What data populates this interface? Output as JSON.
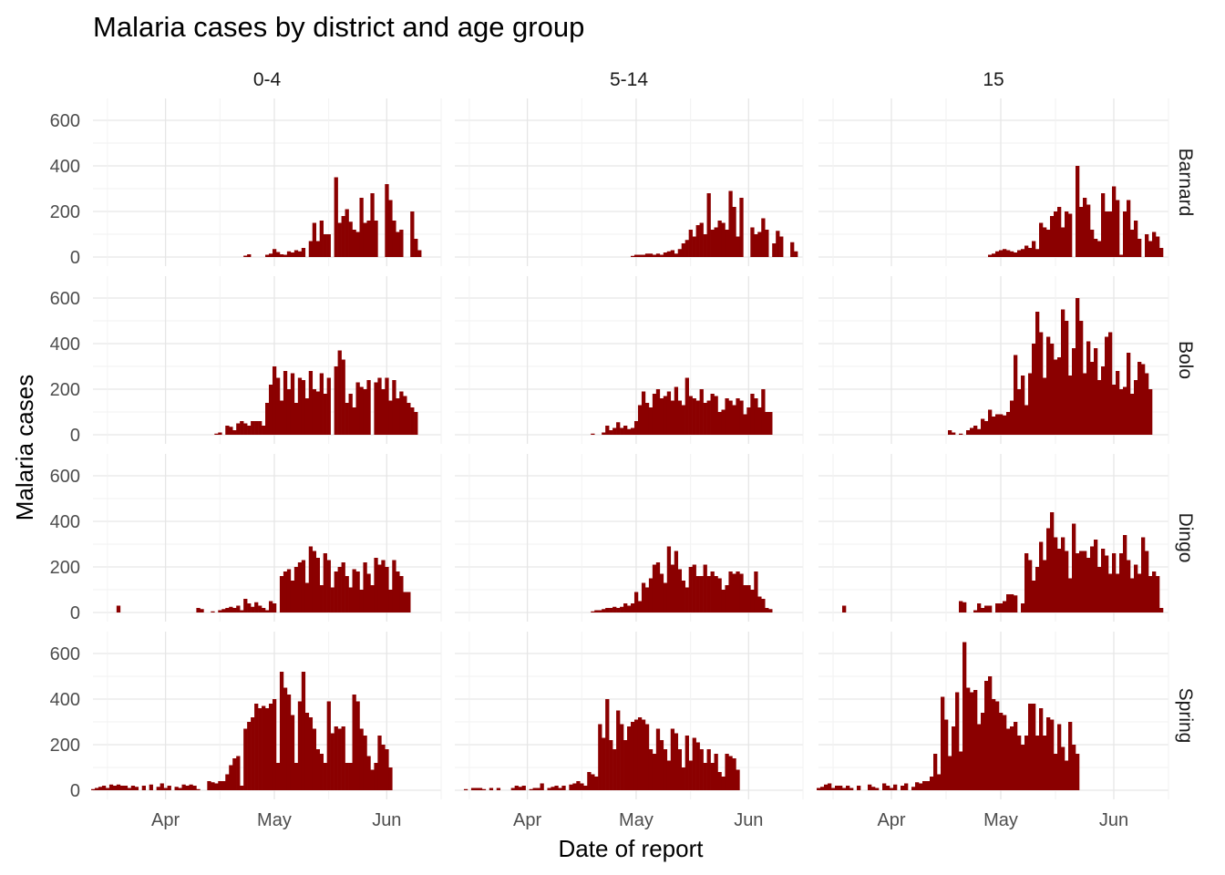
{
  "chart_data": {
    "type": "bar",
    "title": "Malaria cases by district and age group",
    "xlabel": "Date of report",
    "ylabel": "Malaria cases",
    "ylim": [
      0,
      660
    ],
    "y_ticks": [
      0,
      200,
      400,
      600
    ],
    "x_ticks": [
      {
        "date": "2020-04-01",
        "label": "Apr"
      },
      {
        "date": "2020-05-01",
        "label": "May"
      },
      {
        "date": "2020-06-01",
        "label": "Jun"
      }
    ],
    "x_range": [
      "2020-03-12",
      "2020-06-16"
    ],
    "columns": [
      "0-4",
      "5-14",
      "15"
    ],
    "rows": [
      "Barnard",
      "Bolo",
      "Dingo",
      "Spring"
    ],
    "bar_color": "#8B0000",
    "grid": true,
    "note": "Daily bars; values are approximate readings from the chart.",
    "panels": [
      {
        "row": "Barnard",
        "col": "0-4",
        "start": "2020-04-22",
        "values": [
          0,
          6,
          12,
          0,
          0,
          0,
          0,
          10,
          15,
          35,
          22,
          12,
          10,
          25,
          20,
          30,
          25,
          40,
          0,
          70,
          150,
          70,
          160,
          100,
          100,
          0,
          350,
          150,
          180,
          210,
          155,
          120,
          110,
          260,
          150,
          160,
          280,
          160,
          0,
          0,
          320,
          250,
          160,
          110,
          120,
          0,
          0,
          200,
          80,
          30
        ]
      },
      {
        "row": "Barnard",
        "col": "5-14",
        "start": "2020-04-26",
        "values": [
          0,
          0,
          0,
          0,
          5,
          10,
          10,
          10,
          15,
          15,
          10,
          15,
          10,
          20,
          25,
          30,
          15,
          35,
          60,
          75,
          120,
          90,
          140,
          150,
          100,
          280,
          120,
          130,
          160,
          150,
          120,
          290,
          220,
          90,
          260,
          0,
          0,
          130,
          100,
          110,
          170,
          120,
          0,
          60,
          115,
          90,
          0,
          0,
          65,
          25
        ]
      },
      {
        "row": "Barnard",
        "col": "15",
        "start": "2020-04-26",
        "values": [
          0,
          0,
          10,
          15,
          25,
          30,
          35,
          30,
          25,
          20,
          30,
          35,
          50,
          40,
          70,
          35,
          150,
          130,
          120,
          180,
          200,
          220,
          130,
          200,
          190,
          0,
          400,
          220,
          260,
          230,
          120,
          80,
          70,
          280,
          200,
          200,
          310,
          250,
          10,
          200,
          250,
          120,
          160,
          80,
          0,
          100,
          70,
          110,
          90,
          40
        ]
      },
      {
        "row": "Bolo",
        "col": "0-4",
        "start": "2020-04-15",
        "values": [
          5,
          10,
          0,
          40,
          35,
          20,
          50,
          60,
          50,
          40,
          60,
          60,
          60,
          40,
          140,
          220,
          300,
          250,
          150,
          280,
          200,
          270,
          140,
          250,
          240,
          160,
          280,
          200,
          190,
          270,
          180,
          250,
          0,
          300,
          370,
          330,
          140,
          180,
          120,
          230,
          210,
          200,
          240,
          0,
          230,
          250,
          200,
          250,
          150,
          240,
          160,
          190,
          170,
          140,
          120,
          100
        ]
      },
      {
        "row": "Bolo",
        "col": "5-14",
        "start": "2020-04-19",
        "values": [
          5,
          0,
          0,
          10,
          40,
          20,
          30,
          55,
          30,
          40,
          25,
          30,
          60,
          130,
          190,
          140,
          120,
          180,
          200,
          160,
          170,
          190,
          150,
          210,
          150,
          130,
          250,
          170,
          160,
          150,
          200,
          140,
          150,
          180,
          170,
          100,
          110,
          160,
          150,
          130,
          160,
          150,
          90,
          120,
          180,
          160,
          120,
          200,
          100,
          100
        ]
      },
      {
        "row": "Bolo",
        "col": "15",
        "start": "2020-04-17",
        "values": [
          20,
          10,
          0,
          5,
          0,
          20,
          30,
          40,
          25,
          70,
          60,
          110,
          80,
          90,
          90,
          85,
          100,
          150,
          350,
          200,
          260,
          130,
          270,
          400,
          540,
          450,
          250,
          430,
          400,
          330,
          340,
          550,
          500,
          260,
          380,
          600,
          500,
          270,
          410,
          320,
          380,
          240,
          300,
          430,
          450,
          220,
          280,
          200,
          210,
          360,
          180,
          240,
          320,
          310,
          270,
          200
        ]
      },
      {
        "row": "Dingo",
        "col": "0-4",
        "start": "2020-03-11",
        "values": [
          0,
          0,
          0,
          0,
          0,
          0,
          0,
          0,
          30,
          0,
          0,
          0,
          0,
          0,
          0,
          0,
          0,
          0,
          0,
          0,
          0,
          0,
          0,
          0,
          0,
          0,
          0,
          0,
          0,
          0,
          20,
          15,
          0,
          0,
          5,
          0,
          10,
          15,
          20,
          25,
          20,
          30,
          10,
          60,
          40,
          25,
          45,
          30,
          20,
          10,
          50,
          40,
          0,
          160,
          180,
          190,
          140,
          200,
          220,
          230,
          130,
          290,
          270,
          240,
          120,
          260,
          230,
          110,
          180,
          200,
          220,
          160,
          110,
          190,
          180,
          100,
          220,
          170,
          120,
          240,
          210,
          230,
          200,
          100,
          230,
          180,
          160,
          90,
          90,
          0
        ]
      },
      {
        "row": "Dingo",
        "col": "5-14",
        "start": "2020-04-19",
        "values": [
          5,
          10,
          10,
          15,
          20,
          20,
          25,
          20,
          25,
          40,
          30,
          40,
          90,
          50,
          130,
          110,
          150,
          210,
          220,
          170,
          130,
          290,
          210,
          270,
          190,
          140,
          110,
          200,
          210,
          160,
          160,
          210,
          160,
          180,
          160,
          150,
          100,
          120,
          180,
          170,
          180,
          170,
          120,
          120,
          100,
          180,
          70,
          60,
          20,
          15
        ]
      },
      {
        "row": "Dingo",
        "col": "15",
        "start": "2020-03-11",
        "values": [
          0,
          0,
          0,
          0,
          0,
          0,
          0,
          0,
          30,
          0,
          0,
          0,
          0,
          0,
          0,
          0,
          0,
          0,
          0,
          0,
          0,
          0,
          0,
          0,
          0,
          0,
          0,
          0,
          0,
          0,
          0,
          0,
          0,
          0,
          0,
          0,
          0,
          0,
          0,
          0,
          50,
          45,
          0,
          0,
          10,
          40,
          20,
          30,
          30,
          0,
          40,
          40,
          50,
          80,
          80,
          75,
          0,
          40,
          260,
          230,
          140,
          200,
          310,
          230,
          370,
          440,
          330,
          280,
          330,
          270,
          150,
          390,
          260,
          270,
          270,
          240,
          290,
          320,
          200,
          280,
          250,
          170,
          260,
          170,
          260,
          340,
          230,
          150,
          210,
          170,
          330,
          270,
          160,
          180,
          160,
          20
        ]
      },
      {
        "row": "Spring",
        "col": "0-4",
        "start": "2020-03-12",
        "values": [
          5,
          10,
          15,
          20,
          10,
          25,
          20,
          25,
          20,
          20,
          10,
          20,
          15,
          0,
          20,
          0,
          25,
          0,
          15,
          30,
          10,
          20,
          0,
          15,
          10,
          25,
          20,
          25,
          20,
          5,
          0,
          0,
          40,
          35,
          30,
          40,
          40,
          70,
          110,
          140,
          150,
          20,
          270,
          300,
          320,
          380,
          360,
          370,
          360,
          380,
          400,
          120,
          520,
          450,
          420,
          330,
          120,
          390,
          520,
          340,
          320,
          270,
          180,
          160,
          120,
          390,
          250,
          280,
          270,
          280,
          120,
          120,
          420,
          390,
          270,
          240,
          150,
          90,
          120,
          240,
          200,
          180,
          100
        ]
      },
      {
        "row": "Spring",
        "col": "5-14",
        "start": "2020-03-12",
        "values": [
          0,
          0,
          0,
          5,
          0,
          10,
          10,
          10,
          5,
          0,
          10,
          0,
          10,
          0,
          0,
          0,
          10,
          20,
          15,
          20,
          0,
          5,
          10,
          10,
          30,
          0,
          10,
          15,
          20,
          10,
          20,
          0,
          25,
          30,
          40,
          30,
          20,
          80,
          70,
          60,
          290,
          230,
          400,
          220,
          180,
          350,
          290,
          220,
          280,
          300,
          310,
          320,
          310,
          290,
          180,
          160,
          270,
          220,
          180,
          130,
          270,
          250,
          180,
          100,
          240,
          130,
          230,
          210,
          180,
          120,
          180,
          120,
          160,
          80,
          60,
          160,
          150,
          140,
          90
        ]
      },
      {
        "row": "Spring",
        "col": "15",
        "start": "2020-03-12",
        "values": [
          10,
          15,
          25,
          30,
          10,
          20,
          20,
          10,
          20,
          10,
          0,
          20,
          0,
          0,
          25,
          15,
          10,
          0,
          30,
          20,
          10,
          25,
          0,
          20,
          30,
          0,
          15,
          35,
          30,
          40,
          40,
          60,
          160,
          70,
          410,
          310,
          150,
          280,
          430,
          170,
          650,
          450,
          430,
          440,
          290,
          340,
          480,
          500,
          400,
          390,
          340,
          330,
          270,
          280,
          300,
          240,
          200,
          240,
          380,
          380,
          240,
          360,
          240,
          320,
          310,
          160,
          290,
          190,
          130,
          300,
          200,
          160
        ]
      }
    ]
  }
}
